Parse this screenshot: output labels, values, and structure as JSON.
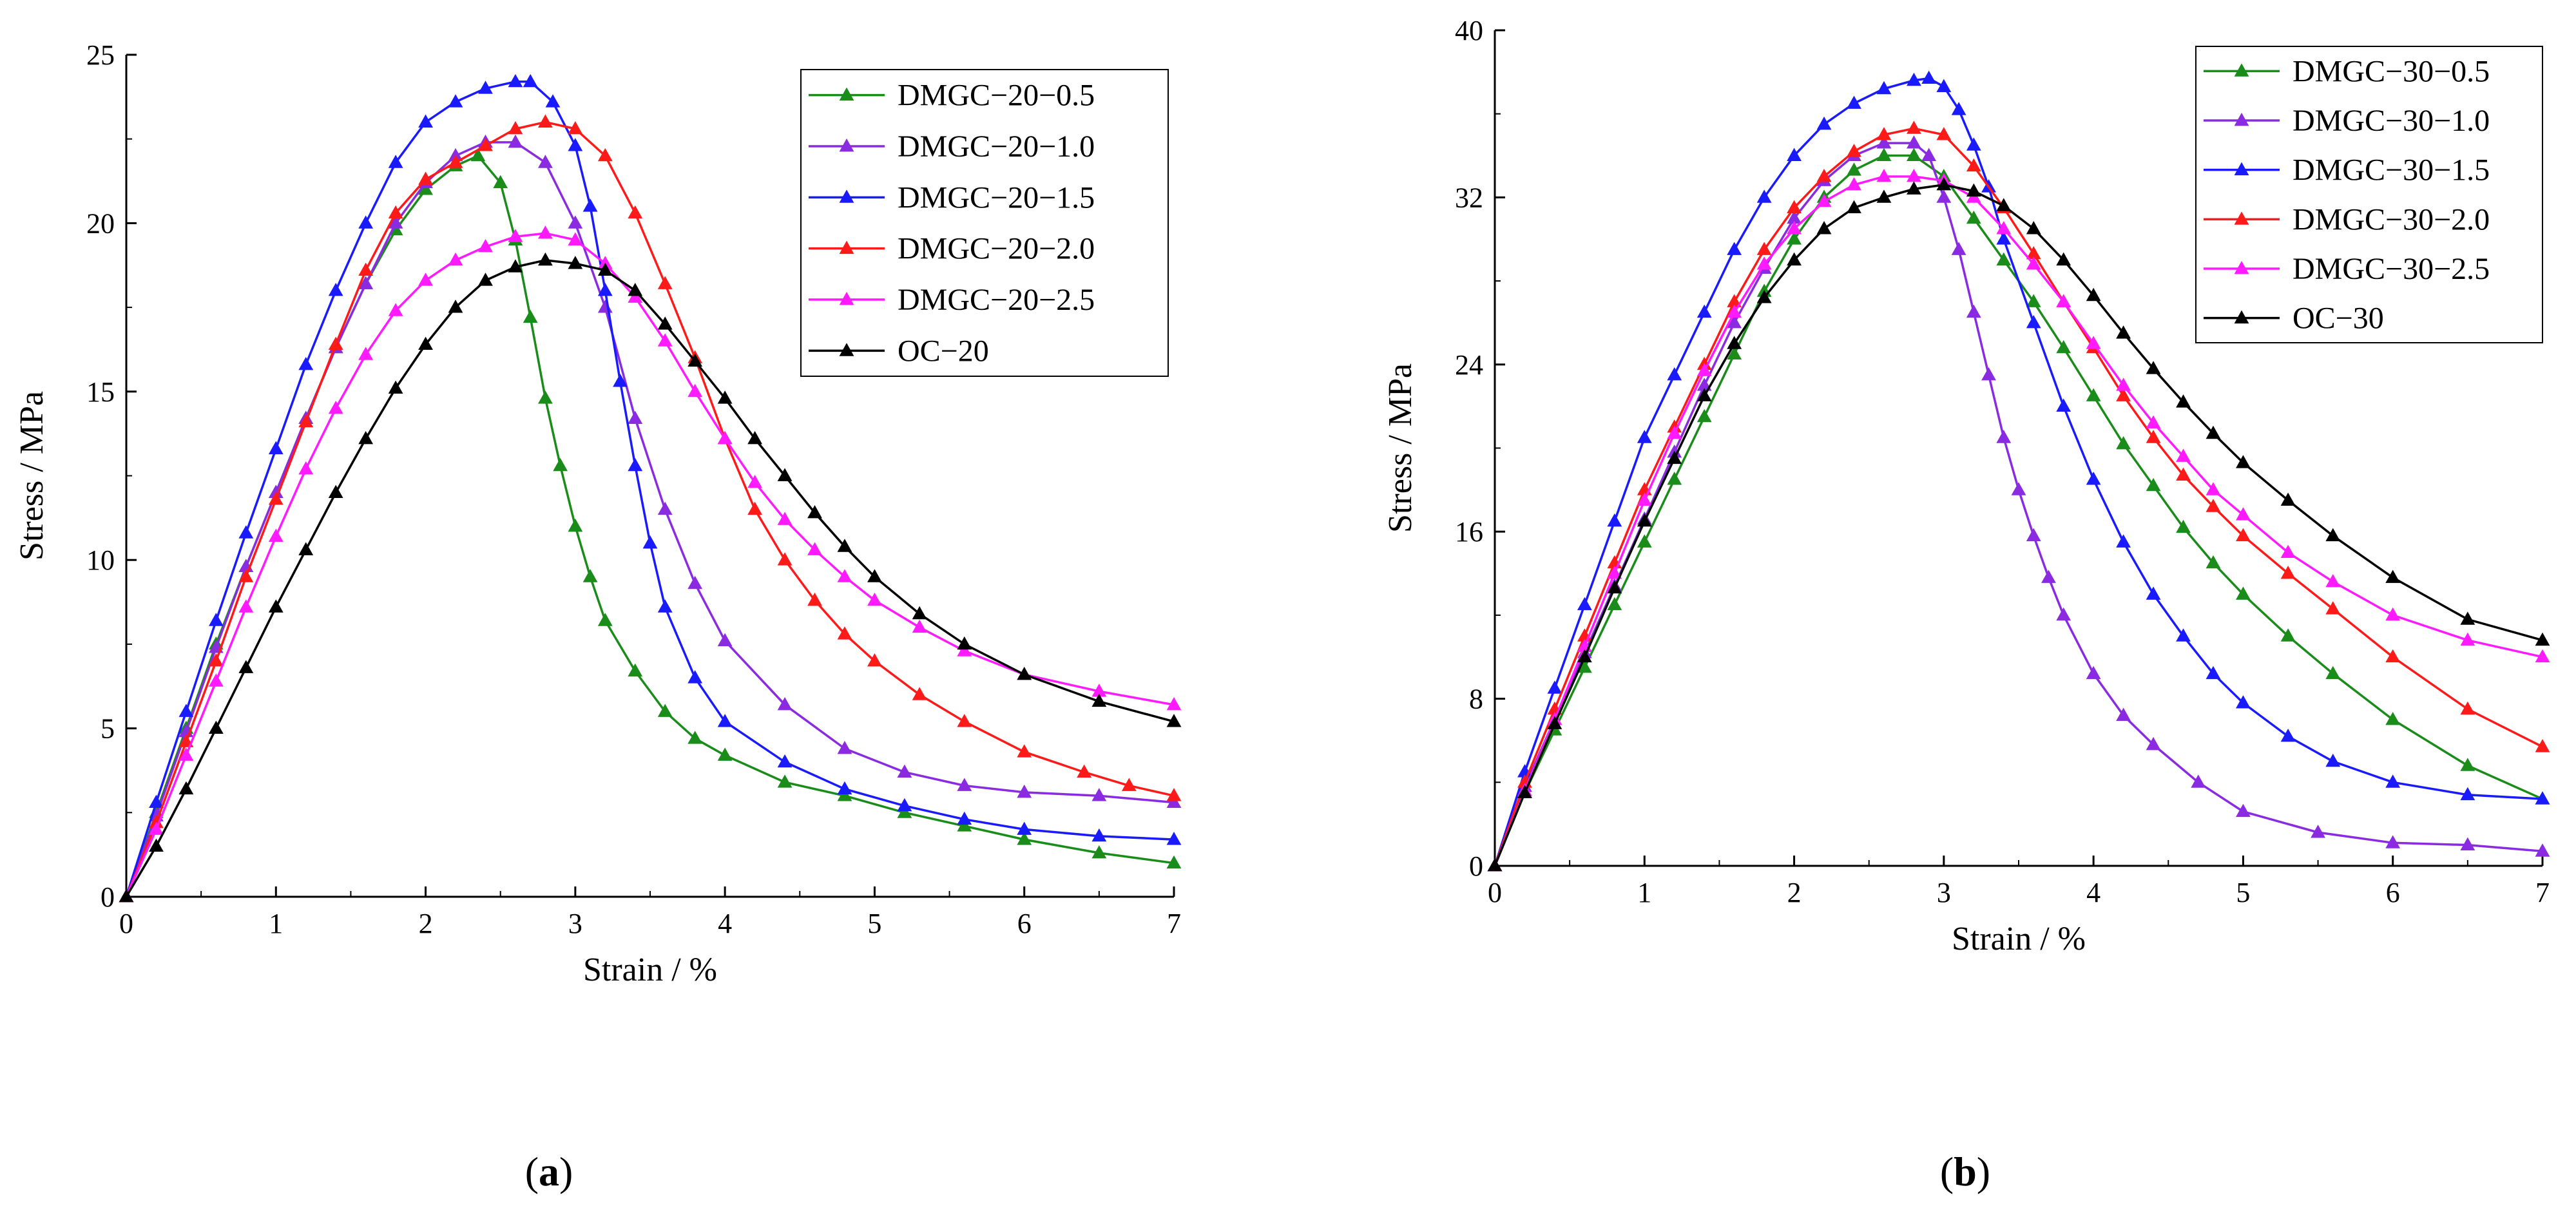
{
  "chart_data": [
    {
      "type": "line",
      "panel_label": "(a)",
      "xlabel": "Strain / %",
      "ylabel": "Stress / MPa",
      "xlim": [
        0,
        7
      ],
      "ylim": [
        0,
        25
      ],
      "xticks": [
        0,
        1,
        2,
        3,
        4,
        5,
        6,
        7
      ],
      "yticks": [
        0,
        5,
        10,
        15,
        20,
        25
      ],
      "grid": false,
      "legend_position": "top-right",
      "series": [
        {
          "name": "DMGC−20−0.5",
          "color": "#1a8c1a",
          "marker": "triangle",
          "x": [
            0,
            0.2,
            0.4,
            0.6,
            0.8,
            1.0,
            1.2,
            1.4,
            1.6,
            1.8,
            2.0,
            2.2,
            2.35,
            2.5,
            2.6,
            2.7,
            2.8,
            2.9,
            3.0,
            3.1,
            3.2,
            3.4,
            3.6,
            3.8,
            4.0,
            4.4,
            4.8,
            5.2,
            5.6,
            6.0,
            6.5,
            7.0
          ],
          "y": [
            0,
            2.5,
            5.0,
            7.5,
            9.8,
            12.0,
            14.2,
            16.3,
            18.2,
            19.8,
            21.0,
            21.7,
            22.0,
            21.2,
            19.5,
            17.2,
            14.8,
            12.8,
            11.0,
            9.5,
            8.2,
            6.7,
            5.5,
            4.7,
            4.2,
            3.4,
            3.0,
            2.5,
            2.1,
            1.7,
            1.3,
            1.0
          ]
        },
        {
          "name": "DMGC−20−1.0",
          "color": "#8a2be2",
          "marker": "triangle",
          "x": [
            0,
            0.2,
            0.4,
            0.6,
            0.8,
            1.0,
            1.2,
            1.4,
            1.6,
            1.8,
            2.0,
            2.2,
            2.4,
            2.6,
            2.8,
            3.0,
            3.2,
            3.4,
            3.6,
            3.8,
            4.0,
            4.4,
            4.8,
            5.2,
            5.6,
            6.0,
            6.5,
            7.0
          ],
          "y": [
            0,
            2.4,
            4.9,
            7.4,
            9.8,
            12.0,
            14.2,
            16.3,
            18.2,
            20.0,
            21.2,
            22.0,
            22.4,
            22.4,
            21.8,
            20.0,
            17.5,
            14.2,
            11.5,
            9.3,
            7.6,
            5.7,
            4.4,
            3.7,
            3.3,
            3.1,
            3.0,
            2.8
          ]
        },
        {
          "name": "DMGC−20−1.5",
          "color": "#1a1aff",
          "marker": "triangle",
          "x": [
            0,
            0.2,
            0.4,
            0.6,
            0.8,
            1.0,
            1.2,
            1.4,
            1.6,
            1.8,
            2.0,
            2.2,
            2.4,
            2.6,
            2.7,
            2.85,
            3.0,
            3.1,
            3.2,
            3.3,
            3.4,
            3.5,
            3.6,
            3.8,
            4.0,
            4.4,
            4.8,
            5.2,
            5.6,
            6.0,
            6.5,
            7.0
          ],
          "y": [
            0,
            2.8,
            5.5,
            8.2,
            10.8,
            13.3,
            15.8,
            18.0,
            20.0,
            21.8,
            23.0,
            23.6,
            24.0,
            24.2,
            24.2,
            23.6,
            22.3,
            20.5,
            18.0,
            15.3,
            12.8,
            10.5,
            8.6,
            6.5,
            5.2,
            4.0,
            3.2,
            2.7,
            2.3,
            2.0,
            1.8,
            1.7
          ]
        },
        {
          "name": "DMGC−20−2.0",
          "color": "#ff1a1a",
          "marker": "triangle",
          "x": [
            0,
            0.2,
            0.4,
            0.6,
            0.8,
            1.0,
            1.2,
            1.4,
            1.6,
            1.8,
            2.0,
            2.2,
            2.4,
            2.6,
            2.8,
            3.0,
            3.2,
            3.4,
            3.6,
            3.8,
            4.0,
            4.2,
            4.4,
            4.6,
            4.8,
            5.0,
            5.3,
            5.6,
            6.0,
            6.4,
            6.7,
            7.0
          ],
          "y": [
            0,
            2.2,
            4.6,
            7.0,
            9.5,
            11.8,
            14.1,
            16.4,
            18.6,
            20.3,
            21.3,
            21.8,
            22.3,
            22.8,
            23.0,
            22.8,
            22.0,
            20.3,
            18.2,
            16.0,
            13.6,
            11.5,
            10.0,
            8.8,
            7.8,
            7.0,
            6.0,
            5.2,
            4.3,
            3.7,
            3.3,
            3.0
          ]
        },
        {
          "name": "DMGC−20−2.5",
          "color": "#ff1aff",
          "marker": "triangle",
          "x": [
            0,
            0.2,
            0.4,
            0.6,
            0.8,
            1.0,
            1.2,
            1.4,
            1.6,
            1.8,
            2.0,
            2.2,
            2.4,
            2.6,
            2.8,
            3.0,
            3.2,
            3.4,
            3.6,
            3.8,
            4.0,
            4.2,
            4.4,
            4.6,
            4.8,
            5.0,
            5.3,
            5.6,
            6.0,
            6.5,
            7.0
          ],
          "y": [
            0,
            2.0,
            4.2,
            6.4,
            8.6,
            10.7,
            12.7,
            14.5,
            16.1,
            17.4,
            18.3,
            18.9,
            19.3,
            19.6,
            19.7,
            19.5,
            18.8,
            17.8,
            16.5,
            15.0,
            13.6,
            12.3,
            11.2,
            10.3,
            9.5,
            8.8,
            8.0,
            7.3,
            6.6,
            6.1,
            5.7
          ]
        },
        {
          "name": "OC−20",
          "color": "#000000",
          "marker": "triangle",
          "x": [
            0,
            0.2,
            0.4,
            0.6,
            0.8,
            1.0,
            1.2,
            1.4,
            1.6,
            1.8,
            2.0,
            2.2,
            2.4,
            2.6,
            2.8,
            3.0,
            3.2,
            3.4,
            3.6,
            3.8,
            4.0,
            4.2,
            4.4,
            4.6,
            4.8,
            5.0,
            5.3,
            5.6,
            6.0,
            6.5,
            7.0
          ],
          "y": [
            0,
            1.5,
            3.2,
            5.0,
            6.8,
            8.6,
            10.3,
            12.0,
            13.6,
            15.1,
            16.4,
            17.5,
            18.3,
            18.7,
            18.9,
            18.8,
            18.6,
            18.0,
            17.0,
            15.9,
            14.8,
            13.6,
            12.5,
            11.4,
            10.4,
            9.5,
            8.4,
            7.5,
            6.6,
            5.8,
            5.2
          ]
        }
      ]
    },
    {
      "type": "line",
      "panel_label": "(b)",
      "xlabel": "Strain / %",
      "ylabel": "Stress / MPa",
      "xlim": [
        0,
        7
      ],
      "ylim": [
        0,
        40
      ],
      "xticks": [
        0,
        1,
        2,
        3,
        4,
        5,
        6,
        7
      ],
      "yticks": [
        0,
        8,
        16,
        24,
        32,
        40
      ],
      "grid": false,
      "legend_position": "top-right",
      "series": [
        {
          "name": "DMGC−30−0.5",
          "color": "#1a8c1a",
          "marker": "triangle",
          "x": [
            0,
            0.2,
            0.4,
            0.6,
            0.8,
            1.0,
            1.2,
            1.4,
            1.6,
            1.8,
            2.0,
            2.2,
            2.4,
            2.6,
            2.8,
            3.0,
            3.2,
            3.4,
            3.6,
            3.8,
            4.0,
            4.2,
            4.4,
            4.6,
            4.8,
            5.0,
            5.3,
            5.6,
            6.0,
            6.5,
            7.0
          ],
          "y": [
            0,
            3.5,
            6.5,
            9.5,
            12.5,
            15.5,
            18.5,
            21.5,
            24.5,
            27.5,
            30.0,
            32.0,
            33.3,
            34.0,
            34.0,
            33.0,
            31.0,
            29.0,
            27.0,
            24.8,
            22.5,
            20.2,
            18.2,
            16.2,
            14.5,
            13.0,
            11.0,
            9.2,
            7.0,
            4.8,
            3.2
          ]
        },
        {
          "name": "DMGC−30−1.0",
          "color": "#8a2be2",
          "marker": "triangle",
          "x": [
            0,
            0.2,
            0.4,
            0.6,
            0.8,
            1.0,
            1.2,
            1.4,
            1.6,
            1.8,
            2.0,
            2.2,
            2.4,
            2.6,
            2.8,
            2.9,
            3.0,
            3.1,
            3.2,
            3.3,
            3.4,
            3.5,
            3.6,
            3.7,
            3.8,
            4.0,
            4.2,
            4.4,
            4.7,
            5.0,
            5.5,
            6.0,
            6.5,
            7.0
          ],
          "y": [
            0,
            3.8,
            7.0,
            10.2,
            13.4,
            16.6,
            19.8,
            23.0,
            26.0,
            28.6,
            31.0,
            32.8,
            34.0,
            34.6,
            34.6,
            34.0,
            32.0,
            29.5,
            26.5,
            23.5,
            20.5,
            18.0,
            15.8,
            13.8,
            12.0,
            9.2,
            7.2,
            5.8,
            4.0,
            2.6,
            1.6,
            1.1,
            1.0,
            0.7
          ]
        },
        {
          "name": "DMGC−30−1.5",
          "color": "#1a1aff",
          "marker": "triangle",
          "x": [
            0,
            0.2,
            0.4,
            0.6,
            0.8,
            1.0,
            1.2,
            1.4,
            1.6,
            1.8,
            2.0,
            2.2,
            2.4,
            2.6,
            2.8,
            2.9,
            3.0,
            3.1,
            3.2,
            3.3,
            3.4,
            3.6,
            3.8,
            4.0,
            4.2,
            4.4,
            4.6,
            4.8,
            5.0,
            5.3,
            5.6,
            6.0,
            6.5,
            7.0
          ],
          "y": [
            0,
            4.5,
            8.5,
            12.5,
            16.5,
            20.5,
            23.5,
            26.5,
            29.5,
            32.0,
            34.0,
            35.5,
            36.5,
            37.2,
            37.6,
            37.7,
            37.3,
            36.2,
            34.5,
            32.5,
            30.0,
            26.0,
            22.0,
            18.5,
            15.5,
            13.0,
            11.0,
            9.2,
            7.8,
            6.2,
            5.0,
            4.0,
            3.4,
            3.2
          ]
        },
        {
          "name": "DMGC−30−2.0",
          "color": "#ff1a1a",
          "marker": "triangle",
          "x": [
            0,
            0.2,
            0.4,
            0.6,
            0.8,
            1.0,
            1.2,
            1.4,
            1.6,
            1.8,
            2.0,
            2.2,
            2.4,
            2.6,
            2.8,
            3.0,
            3.2,
            3.4,
            3.6,
            3.8,
            4.0,
            4.2,
            4.4,
            4.6,
            4.8,
            5.0,
            5.3,
            5.6,
            6.0,
            6.5,
            7.0
          ],
          "y": [
            0,
            4.0,
            7.5,
            11.0,
            14.5,
            18.0,
            21.0,
            24.0,
            27.0,
            29.5,
            31.5,
            33.0,
            34.2,
            35.0,
            35.3,
            35.0,
            33.5,
            31.5,
            29.3,
            27.0,
            24.8,
            22.5,
            20.5,
            18.7,
            17.2,
            15.8,
            14.0,
            12.3,
            10.0,
            7.5,
            5.7
          ]
        },
        {
          "name": "DMGC−30−2.5",
          "color": "#ff1aff",
          "marker": "triangle",
          "x": [
            0,
            0.2,
            0.4,
            0.6,
            0.8,
            1.0,
            1.2,
            1.4,
            1.6,
            1.8,
            2.0,
            2.2,
            2.4,
            2.6,
            2.8,
            3.0,
            3.2,
            3.4,
            3.6,
            3.8,
            4.0,
            4.2,
            4.4,
            4.6,
            4.8,
            5.0,
            5.3,
            5.6,
            6.0,
            6.5,
            7.0
          ],
          "y": [
            0,
            3.6,
            7.0,
            10.5,
            14.0,
            17.5,
            20.7,
            23.7,
            26.5,
            28.8,
            30.5,
            31.8,
            32.6,
            33.0,
            33.0,
            32.8,
            32.0,
            30.5,
            28.8,
            27.0,
            25.0,
            23.0,
            21.2,
            19.6,
            18.0,
            16.8,
            15.0,
            13.6,
            12.0,
            10.8,
            10.0
          ]
        },
        {
          "name": "OC−30",
          "color": "#000000",
          "marker": "triangle",
          "x": [
            0,
            0.2,
            0.4,
            0.6,
            0.8,
            1.0,
            1.2,
            1.4,
            1.6,
            1.8,
            2.0,
            2.2,
            2.4,
            2.6,
            2.8,
            3.0,
            3.2,
            3.4,
            3.6,
            3.8,
            4.0,
            4.2,
            4.4,
            4.6,
            4.8,
            5.0,
            5.3,
            5.6,
            6.0,
            6.5,
            7.0
          ],
          "y": [
            0,
            3.5,
            6.8,
            10.0,
            13.3,
            16.5,
            19.5,
            22.5,
            25.0,
            27.2,
            29.0,
            30.5,
            31.5,
            32.0,
            32.4,
            32.6,
            32.3,
            31.6,
            30.5,
            29.0,
            27.3,
            25.5,
            23.8,
            22.2,
            20.7,
            19.3,
            17.5,
            15.8,
            13.8,
            11.8,
            10.8
          ]
        }
      ]
    }
  ]
}
